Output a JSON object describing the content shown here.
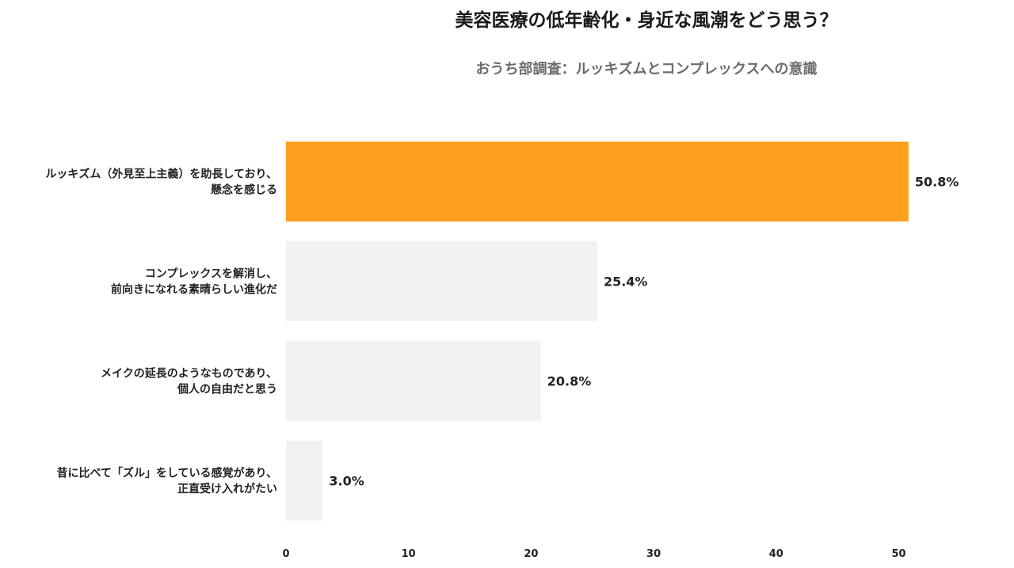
{
  "chart_data": {
    "type": "bar",
    "orientation": "horizontal",
    "title": "美容医療の低年齢化・身近な風潮をどう思う？",
    "subtitle": "おうち部調査：ルッキズムとコンプレックスへの意識",
    "categories": [
      [
        "ルッキズム（外見至上主義）を助長しており、",
        "懸念を感じる"
      ],
      [
        "コンプレックスを解消し、",
        "前向きになれる素晴らしい進化だ"
      ],
      [
        "メイクの延長のようなものであり、",
        "個人の自由だと思う"
      ],
      [
        "昔に比べて「ズル」をしている感覚があり、",
        "正直受け入れがたい"
      ]
    ],
    "values": [
      50.8,
      25.4,
      20.8,
      3.0
    ],
    "value_labels": [
      "50.8%",
      "25.4%",
      "20.8%",
      "3.0%"
    ],
    "colors": [
      "#FFA01E",
      "#F2F2F2",
      "#F2F2F2",
      "#F2F2F2"
    ],
    "xlim": [
      0,
      50
    ],
    "xticks": [
      0,
      10,
      20,
      30,
      40,
      50
    ],
    "grid": false,
    "legend": false,
    "xlabel": "",
    "ylabel": ""
  }
}
